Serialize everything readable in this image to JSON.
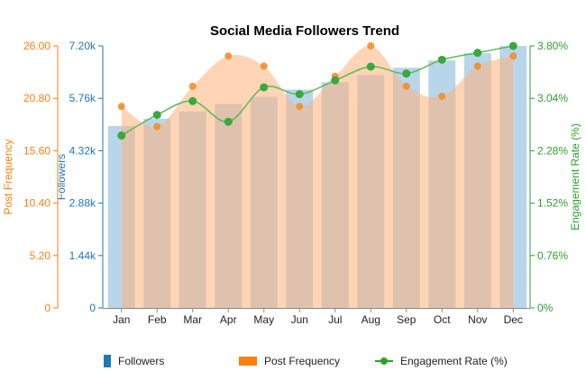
{
  "chart_data": {
    "type": "bar",
    "title": "Social Media Followers Trend",
    "categories": [
      "Jan",
      "Feb",
      "Mar",
      "Apr",
      "May",
      "Jun",
      "Jul",
      "Aug",
      "Sep",
      "Oct",
      "Nov",
      "Dec"
    ],
    "series": [
      {
        "name": "Followers",
        "type": "bar",
        "axis": "left-inner",
        "color": "#1f77b4",
        "values": [
          5000,
          5200,
          5400,
          5600,
          5800,
          6000,
          6200,
          6400,
          6600,
          6800,
          7000,
          7200
        ]
      },
      {
        "name": "Post Frequency",
        "type": "area",
        "axis": "left-outer",
        "color": "#ff7f0e",
        "values": [
          20,
          18,
          22,
          25,
          24,
          20,
          23,
          26,
          22,
          21,
          24,
          25
        ]
      },
      {
        "name": "Engagement Rate (%)",
        "type": "line",
        "axis": "right",
        "color": "#2ca02c",
        "values": [
          2.5,
          2.8,
          3.0,
          2.7,
          3.2,
          3.1,
          3.3,
          3.5,
          3.4,
          3.6,
          3.7,
          3.8
        ]
      }
    ],
    "axes": {
      "followers": {
        "label": "Followers",
        "range": [
          0,
          7200
        ],
        "ticks": [
          0,
          1440,
          2880,
          4320,
          5760,
          7200
        ],
        "tick_labels": [
          "0",
          "1.44k",
          "2.88k",
          "4.32k",
          "5.76k",
          "7.20k"
        ],
        "color": "#1f77b4"
      },
      "post_frequency": {
        "label": "Post Frequency",
        "range": [
          0,
          26
        ],
        "ticks": [
          0,
          5.2,
          10.4,
          15.6,
          20.8,
          26
        ],
        "tick_labels": [
          "0",
          "5.20",
          "10.40",
          "15.60",
          "20.80",
          "26.00"
        ],
        "color": "#ff7f0e"
      },
      "engagement": {
        "label": "Engagement Rate (%)",
        "range": [
          0,
          3.8
        ],
        "ticks": [
          0,
          0.76,
          1.52,
          2.28,
          3.04,
          3.8
        ],
        "tick_labels": [
          "0%",
          "0.76%",
          "1.52%",
          "2.28%",
          "3.04%",
          "3.80%"
        ],
        "color": "#2ca02c"
      }
    },
    "grid": false,
    "legend_position": "bottom"
  },
  "legend": {
    "items": [
      {
        "label": "Followers",
        "color": "#1f77b4"
      },
      {
        "label": "Post Frequency",
        "color": "#ff7f0e"
      },
      {
        "label": "Engagement Rate (%)",
        "color": "#2ca02c"
      }
    ]
  }
}
